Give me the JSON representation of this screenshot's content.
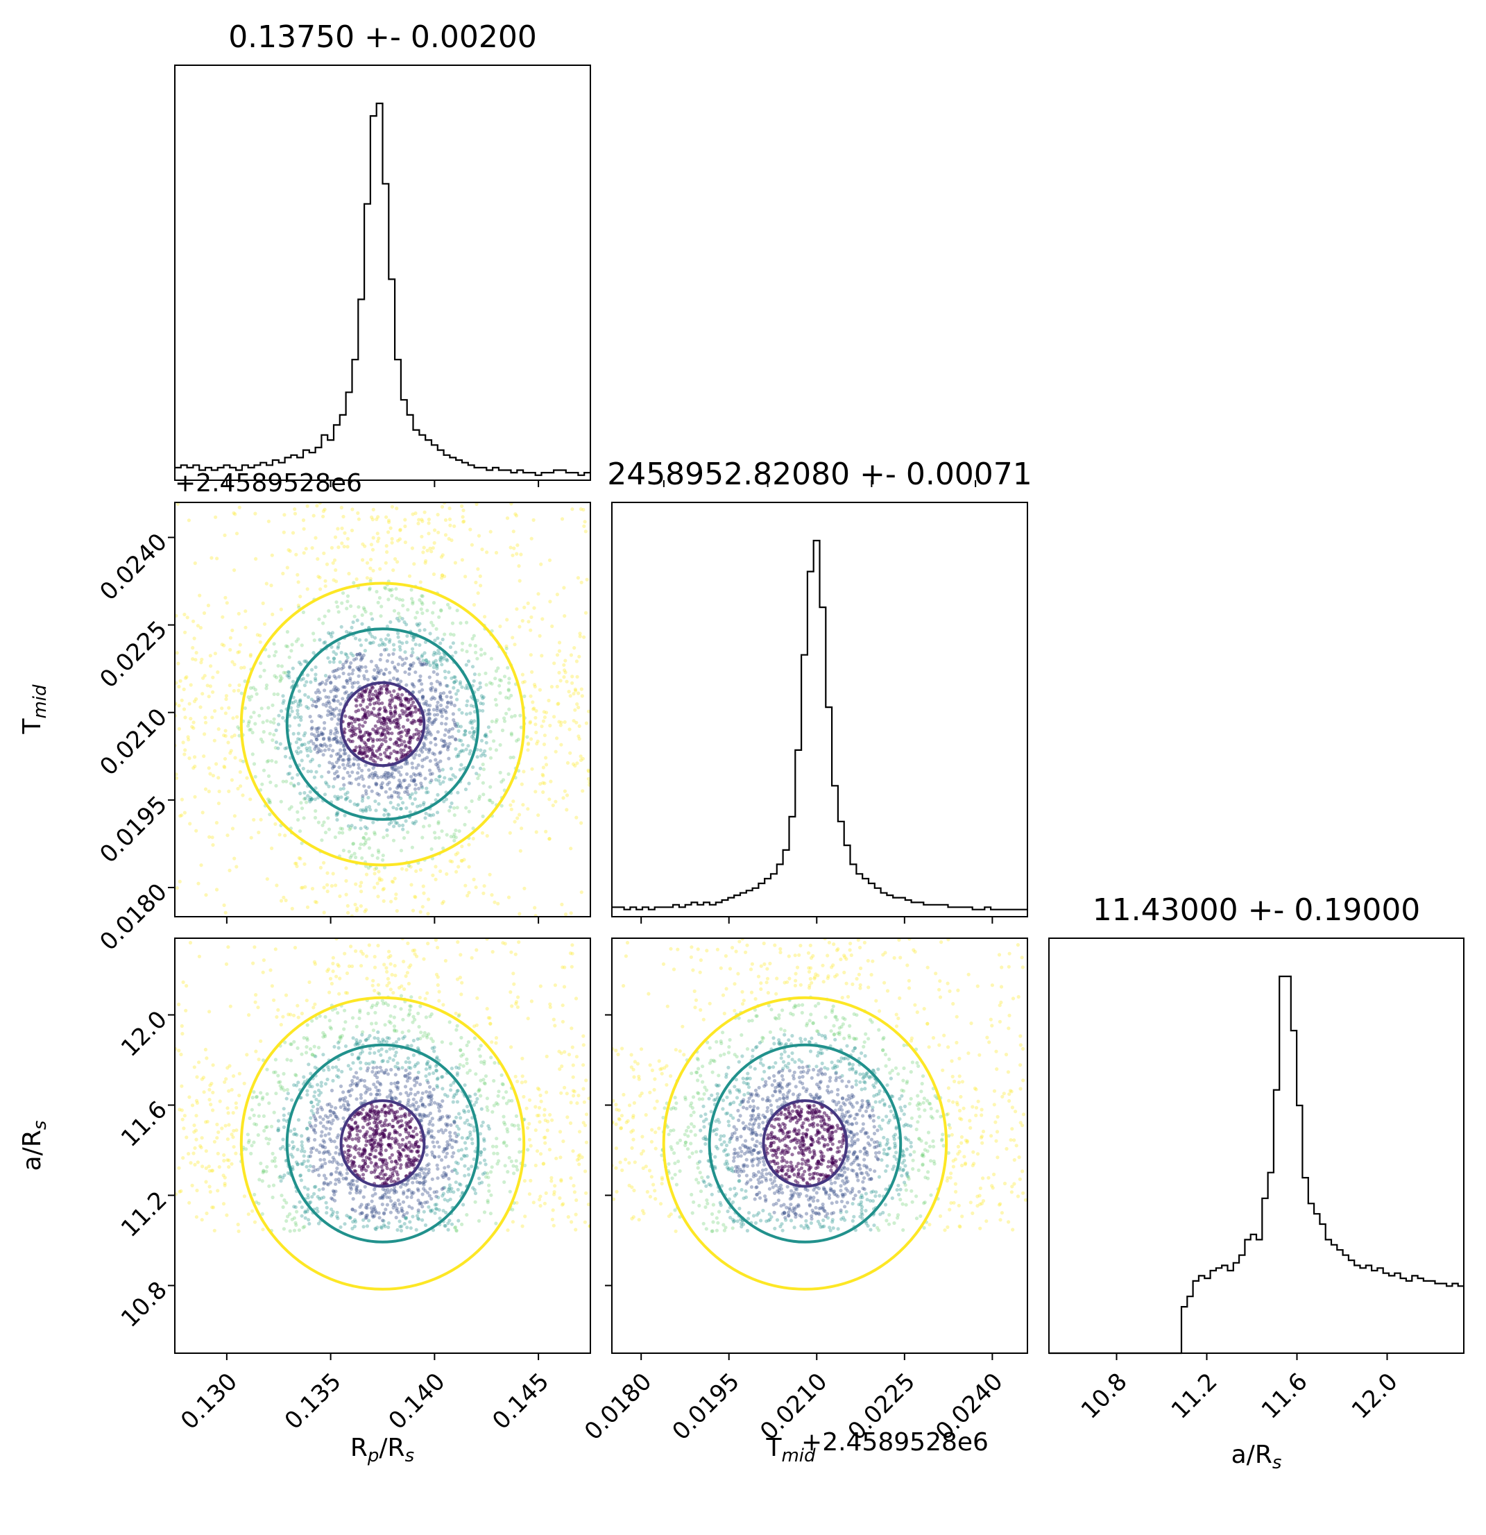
{
  "chart_data": {
    "type": "corner",
    "colors": {
      "histogram": "#000000",
      "scatter": [
        "#440154",
        "#3b528b",
        "#21918c",
        "#5ec962",
        "#fde725"
      ],
      "contour_1sigma": "#453781",
      "contour_2sigma": "#21918c",
      "contour_3sigma": "#fde725"
    },
    "parameters": [
      {
        "key": "rp",
        "label_main": "R",
        "label_sub": "p",
        "label_mid": "/R",
        "label_sub2": "s",
        "title": "0.13750 +- 0.00200",
        "mean": 0.1375,
        "std": 0.002,
        "range": [
          0.1275,
          0.1475
        ],
        "ticks": [
          0.13,
          0.135,
          0.14,
          0.145
        ],
        "tick_labels": [
          "0.130",
          "0.135",
          "0.140",
          "0.145"
        ]
      },
      {
        "key": "tmid",
        "label_main": "T",
        "label_sub": "mid",
        "label_mid": "",
        "label_sub2": "",
        "title": "2458952.82080 +- 0.00071",
        "mean": 0.0208,
        "std": 0.00071,
        "range": [
          0.0175,
          0.0246
        ],
        "offset_label": "+2.4589528e6",
        "ticks": [
          0.018,
          0.0195,
          0.021,
          0.0225,
          0.024
        ],
        "tick_labels": [
          "0.0180",
          "0.0195",
          "0.0210",
          "0.0225",
          "0.0240"
        ]
      },
      {
        "key": "ars",
        "label_main": "a/R",
        "label_sub": "s",
        "label_mid": "",
        "label_sub2": "",
        "title": "11.43000 +- 0.19000",
        "mean": 11.43,
        "std": 0.19,
        "range": [
          10.5,
          12.34
        ],
        "ticks": [
          10.8,
          11.2,
          11.6,
          12.0
        ],
        "tick_labels": [
          "10.8",
          "11.2",
          "11.6",
          "12.0"
        ]
      }
    ],
    "histograms": {
      "rp": {
        "bins": [
          0.1275,
          0.1475
        ],
        "counts": [
          5,
          6,
          5,
          6,
          4,
          5,
          4,
          5,
          6,
          5,
          4,
          6,
          5,
          6,
          7,
          6,
          8,
          7,
          9,
          10,
          9,
          12,
          11,
          13,
          18,
          16,
          22,
          26,
          35,
          48,
          72,
          110,
          145,
          150,
          118,
          80,
          48,
          32,
          26,
          20,
          18,
          16,
          14,
          12,
          10,
          9,
          8,
          7,
          6,
          5,
          5,
          4,
          5,
          4,
          4,
          3,
          4,
          3,
          3,
          2,
          3,
          3,
          4,
          4,
          3,
          3,
          2,
          3
        ]
      },
      "tmid": {
        "bins": [
          0.0175,
          0.0246
        ],
        "counts": [
          4,
          4,
          3,
          4,
          3,
          4,
          3,
          4,
          4,
          4,
          5,
          4,
          5,
          6,
          5,
          6,
          5,
          6,
          7,
          8,
          9,
          10,
          11,
          12,
          14,
          16,
          18,
          22,
          28,
          42,
          70,
          110,
          145,
          158,
          130,
          88,
          55,
          40,
          30,
          22,
          18,
          16,
          14,
          12,
          10,
          9,
          8,
          8,
          7,
          6,
          6,
          5,
          5,
          5,
          5,
          4,
          4,
          4,
          4,
          3,
          3,
          4,
          3,
          3,
          3,
          3,
          3,
          3
        ]
      },
      "ars": {
        "bins": [
          10.5,
          12.34
        ],
        "counts": [
          0,
          0,
          0,
          0,
          0,
          0,
          0,
          0,
          0,
          0,
          0,
          0,
          0,
          0,
          0,
          0,
          0,
          0,
          0,
          0,
          0,
          0,
          0,
          18,
          22,
          28,
          30,
          29,
          32,
          33,
          34,
          32,
          35,
          38,
          44,
          46,
          44,
          60,
          70,
          102,
          146,
          146,
          125,
          96,
          68,
          58,
          54,
          50,
          44,
          42,
          40,
          38,
          36,
          34,
          33,
          34,
          32,
          33,
          31,
          30,
          31,
          29,
          28,
          30,
          29,
          28,
          28,
          27,
          27,
          26,
          27,
          26
        ]
      }
    },
    "pair_plots": [
      {
        "x": "rp",
        "y": "tmid"
      },
      {
        "x": "rp",
        "y": "ars"
      },
      {
        "x": "tmid",
        "y": "ars"
      }
    ],
    "sample_cutoff": {
      "ars_min": 11.04
    }
  }
}
